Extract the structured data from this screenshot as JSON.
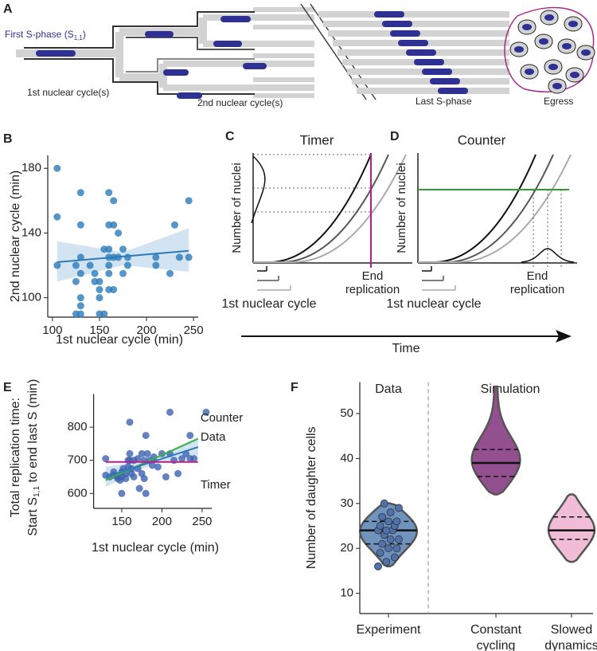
{
  "panel_a": {
    "label": "A",
    "first_s_phase": {
      "text": "First S-phase (S",
      "subscript": "1,1",
      "suffix": ")"
    },
    "first_cycle": "1st nuclear cycle(s)",
    "second_cycle": "2nd nuclear cycle(s)",
    "last_s_phase": "Last S-phase",
    "egress": "Egress"
  },
  "schematics": [
    {
      "label": "C",
      "title": "Timer",
      "title_color": "#c1188b",
      "y_label": "Number of nuclei",
      "end_label": "End replication",
      "x_label": "1st nuclear cycle"
    },
    {
      "label": "D",
      "title": "Counter",
      "title_color": "#2ca02c",
      "y_label": "Number of nuclei",
      "end_label": "End replication",
      "x_label": "1st nuclear cycle"
    }
  ],
  "time_label": "Time",
  "chart_data": [
    {
      "type": "scatter",
      "label": "B",
      "x_label": "1st nuclear cycle (min)",
      "y_label": "2nd nuclear cycle (min)",
      "color": "#2b7bba",
      "xlim": [
        95,
        255
      ],
      "ylim": [
        88,
        188
      ],
      "xticks": [
        100,
        150,
        200,
        250
      ],
      "yticks": [
        100,
        140,
        180
      ],
      "x": [
        105,
        105,
        105,
        130,
        130,
        130,
        125,
        130,
        125,
        130,
        130,
        130,
        125,
        140,
        145,
        145,
        150,
        150,
        150,
        150,
        155,
        155,
        160,
        160,
        160,
        160,
        160,
        160,
        160,
        165,
        165,
        165,
        165,
        170,
        170,
        175,
        175,
        180,
        180,
        210,
        210,
        225,
        230,
        235,
        245,
        245
      ],
      "y": [
        180,
        150,
        120,
        165,
        145,
        125,
        120,
        115,
        110,
        100,
        95,
        90,
        90,
        120,
        115,
        110,
        110,
        105,
        100,
        90,
        90,
        130,
        165,
        145,
        130,
        125,
        120,
        115,
        105,
        160,
        145,
        125,
        105,
        140,
        125,
        130,
        115,
        125,
        120,
        125,
        120,
        115,
        145,
        125,
        160,
        125
      ],
      "fit": {
        "x": [
          105,
          245
        ],
        "y": [
          122,
          129
        ]
      },
      "ci": {
        "x": [
          105,
          175,
          245
        ],
        "lower": [
          110,
          120,
          116
        ],
        "upper": [
          135,
          128,
          143
        ]
      }
    },
    {
      "type": "scatter",
      "label": "E",
      "x_label": "1st nuclear cycle (min)",
      "y_label": {
        "line1": "Total replication time:",
        "text": "Start S",
        "subscript": "1,1",
        "suffix": " to end last S (min)"
      },
      "color": "#3f63b0",
      "xlim": [
        115,
        262
      ],
      "ylim": [
        555,
        900
      ],
      "xticks": [
        150,
        200,
        250
      ],
      "yticks": [
        600,
        700,
        800
      ],
      "x": [
        130,
        130,
        135,
        140,
        140,
        145,
        145,
        148,
        150,
        150,
        150,
        152,
        155,
        155,
        158,
        158,
        160,
        160,
        160,
        162,
        162,
        165,
        165,
        170,
        170,
        172,
        175,
        175,
        178,
        178,
        180,
        180,
        182,
        185,
        188,
        190,
        195,
        200,
        205,
        210,
        210,
        215,
        220,
        225,
        230,
        235,
        235,
        240,
        255
      ],
      "y": [
        705,
        655,
        650,
        665,
        655,
        650,
        645,
        640,
        650,
        600,
        665,
        675,
        660,
        645,
        700,
        680,
        815,
        720,
        700,
        675,
        660,
        700,
        650,
        705,
        675,
        615,
        720,
        660,
        700,
        645,
        775,
        600,
        720,
        700,
        685,
        710,
        680,
        720,
        650,
        845,
        720,
        700,
        660,
        705,
        720,
        775,
        705,
        705,
        845
      ],
      "ci": {
        "x": [
          130,
          190,
          245
        ],
        "lower": [
          620,
          690,
          715
        ],
        "upper": [
          680,
          705,
          770
        ]
      },
      "lines": [
        {
          "name": "Counter",
          "color": "#3cb043",
          "x": [
            130,
            245
          ],
          "y": [
            640,
            765
          ]
        },
        {
          "name": "Data",
          "color": "#2b7bba",
          "x": [
            130,
            245
          ],
          "y": [
            650,
            740
          ]
        },
        {
          "name": "Timer",
          "color": "#c1188b",
          "x": [
            130,
            245
          ],
          "y": [
            695,
            695
          ]
        }
      ]
    },
    {
      "type": "violin",
      "label": "F",
      "y_label": "Number of daughter cells",
      "section_labels": [
        "Data",
        "Simulation"
      ],
      "categories": [
        "Experiment",
        "Constant cycling",
        "Slowed dynamics"
      ],
      "colors": [
        "#6f93bd",
        "#93508f",
        "#f1bcd5"
      ],
      "ylim": [
        5.5,
        57
      ],
      "yticks": [
        10,
        20,
        30,
        40,
        50
      ],
      "min": [
        16,
        32,
        17
      ],
      "q1": [
        21,
        36,
        22
      ],
      "median": [
        24,
        39,
        24
      ],
      "q3": [
        26,
        42,
        27
      ],
      "max": [
        30,
        56,
        32
      ],
      "points": [
        16,
        17,
        18,
        19,
        20,
        20,
        21,
        22,
        22,
        23,
        24,
        24,
        24,
        25,
        25,
        26,
        26,
        27,
        28,
        29,
        30
      ]
    }
  ]
}
